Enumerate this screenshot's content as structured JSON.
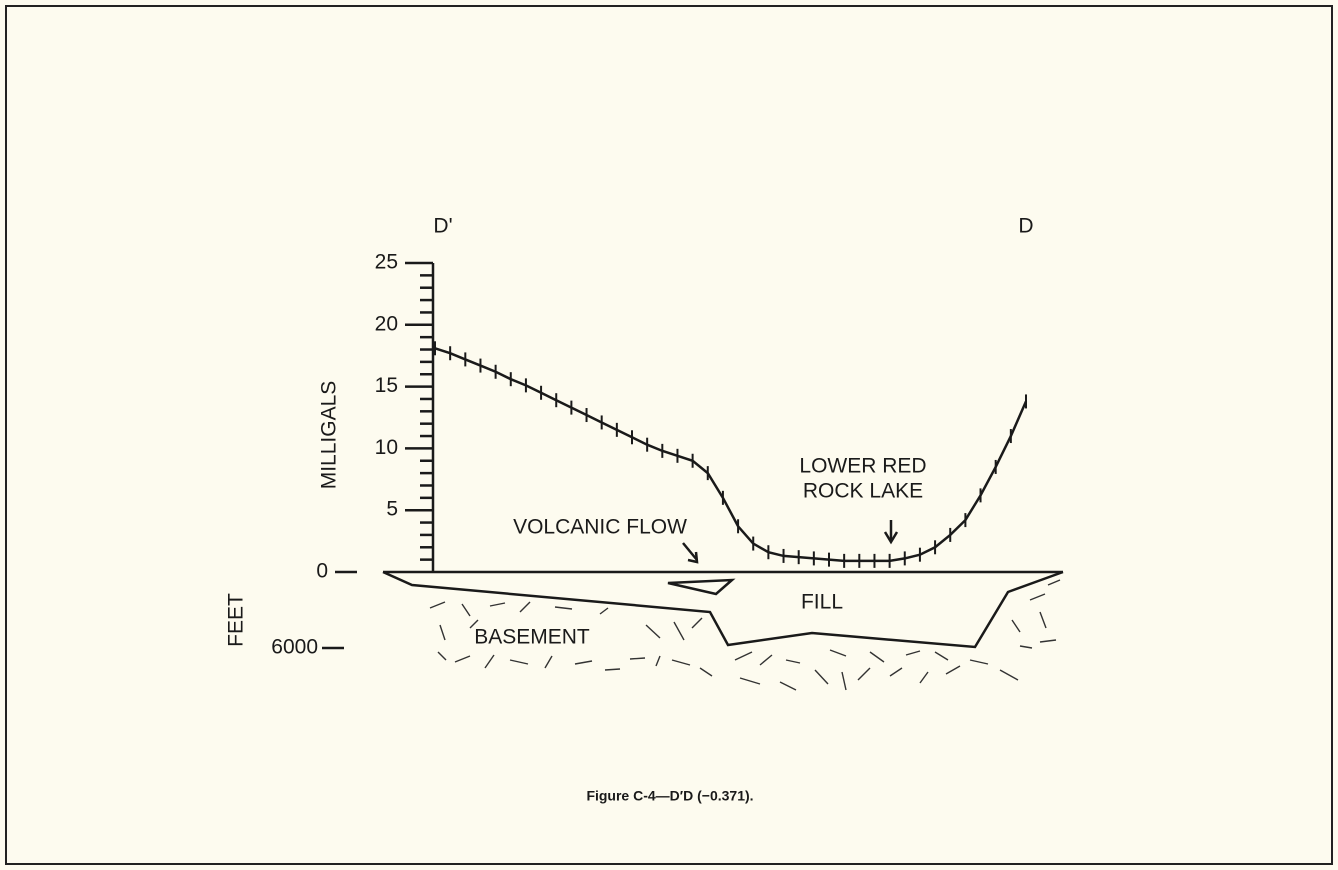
{
  "chart_data": {
    "type": "line",
    "top_left_label": "D'",
    "top_right_label": "D",
    "ylabel": "MILLIGALS",
    "ylim": [
      0,
      25
    ],
    "yticks": [
      0,
      5,
      10,
      15,
      20,
      25
    ],
    "yminorticks": [
      1,
      2,
      3,
      4,
      6,
      7,
      8,
      9,
      11,
      12,
      13,
      14,
      16,
      17,
      18,
      19,
      21,
      22,
      23,
      24
    ],
    "depth_label": "FEET",
    "depth_ticks": [
      0,
      6000
    ],
    "color": "#1a1a1a",
    "categories": [
      null,
      null,
      null,
      null,
      null,
      null,
      null,
      null,
      null,
      null,
      null,
      null,
      null,
      null,
      null,
      null,
      null,
      null,
      null,
      null,
      null,
      null,
      null,
      null,
      null,
      null,
      null,
      null,
      null,
      null,
      null,
      null,
      null,
      null,
      null,
      null,
      null,
      null,
      null,
      null
    ],
    "values": [
      18.1,
      17.7,
      17.2,
      16.7,
      16.2,
      15.6,
      15.1,
      14.5,
      13.9,
      13.3,
      12.7,
      12.1,
      11.5,
      10.9,
      10.3,
      9.8,
      9.4,
      9.0,
      8.0,
      6.0,
      3.7,
      2.3,
      1.6,
      1.3,
      1.2,
      1.1,
      1.0,
      0.9,
      0.9,
      0.9,
      0.9,
      1.1,
      1.4,
      2.0,
      3.0,
      4.2,
      6.2,
      8.5,
      11.0,
      13.8
    ],
    "annotations": {
      "volcanic_flow": "VOLCANIC FLOW",
      "lake_line1": "LOWER RED",
      "lake_line2": "ROCK LAKE",
      "fill": "FILL",
      "basement": "BASEMENT"
    },
    "caption": "Figure C-4—D′D (−0.371)."
  }
}
